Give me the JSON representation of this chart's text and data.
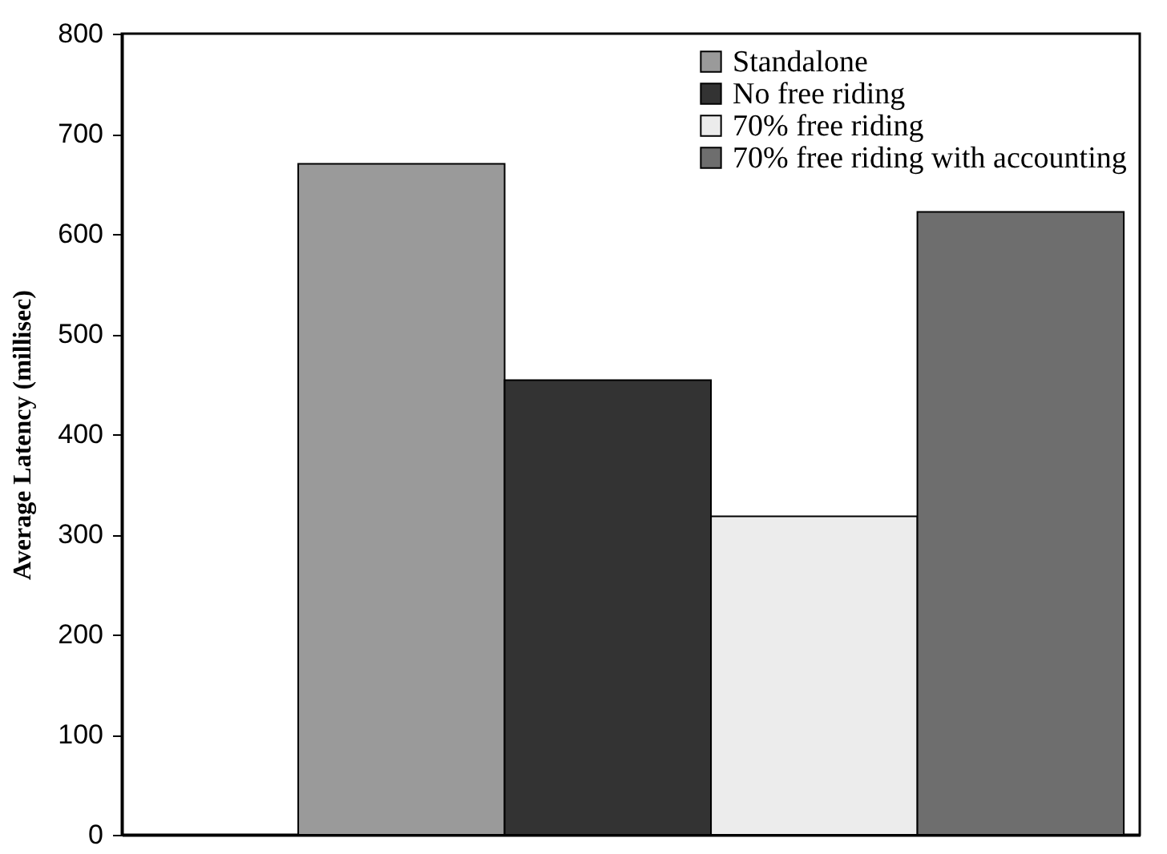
{
  "chart_data": {
    "type": "bar",
    "ylabel": "Average Latency (millisec)",
    "categories": [
      null
    ],
    "series": [
      {
        "name": "Standalone",
        "color": "#9a9a9a",
        "values": [
          670
        ]
      },
      {
        "name": "No free riding",
        "color": "#333333",
        "values": [
          454
        ]
      },
      {
        "name": "70% free riding",
        "color": "#ececec",
        "values": [
          318
        ]
      },
      {
        "name": "70% free riding with accounting",
        "color": "#6e6e6e",
        "values": [
          622
        ]
      }
    ],
    "ylim": [
      0,
      800
    ],
    "yticks": [
      0,
      100,
      200,
      300,
      400,
      500,
      600,
      700,
      800
    ],
    "grid": false,
    "legend": "top right",
    "tick_labels": "y"
  }
}
